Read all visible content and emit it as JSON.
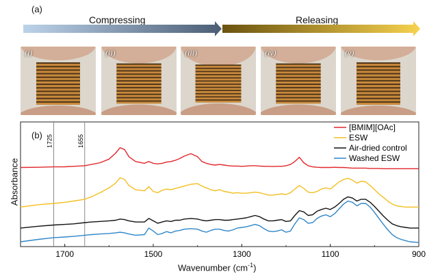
{
  "panel_a": {
    "label": "(a)",
    "compress_label": "Compressing",
    "release_label": "Releasing",
    "photos": [
      {
        "label": "(i)",
        "compression": 0.0
      },
      {
        "label": "(ii)",
        "compression": 0.15
      },
      {
        "label": "(iii)",
        "compression": 0.3
      },
      {
        "label": "(iv)",
        "compression": 0.15
      },
      {
        "label": "(v)",
        "compression": 0.0
      }
    ],
    "colors": {
      "compress_start": "#bcd3ea",
      "compress_end": "#4a5d74",
      "release_start": "#6b5310",
      "release_end": "#f6d24e"
    }
  },
  "panel_b": {
    "label": "(b)",
    "ylabel": "Absorbance",
    "xlabel": "Wavenumber (cm",
    "xlabel_sup": "-1",
    "xlabel_close": ")",
    "ref_lines": [
      "1725",
      "1655"
    ],
    "chart_data": {
      "type": "line",
      "xlabel": "Wavenumber (cm-1)",
      "ylabel": "Absorbance",
      "xlim": [
        1800,
        900
      ],
      "x_ticks": [
        "1700",
        "1500",
        "1300",
        "1100",
        "900"
      ],
      "vertical_lines": [
        1725,
        1655
      ],
      "legend_position": "top-right",
      "x": [
        1800,
        1760,
        1725,
        1700,
        1680,
        1655,
        1640,
        1620,
        1600,
        1585,
        1575,
        1565,
        1555,
        1540,
        1520,
        1510,
        1500,
        1490,
        1480,
        1470,
        1460,
        1450,
        1440,
        1430,
        1415,
        1400,
        1390,
        1380,
        1370,
        1360,
        1350,
        1340,
        1330,
        1320,
        1310,
        1300,
        1290,
        1280,
        1270,
        1260,
        1250,
        1240,
        1230,
        1220,
        1210,
        1200,
        1190,
        1180,
        1170,
        1160,
        1150,
        1140,
        1130,
        1120,
        1110,
        1100,
        1090,
        1080,
        1070,
        1060,
        1050,
        1040,
        1030,
        1020,
        1010,
        1000,
        990,
        980,
        970,
        960,
        950,
        940,
        930,
        920,
        900
      ],
      "series": [
        {
          "name": "[BMIM][OAc]",
          "color": "#e0262b",
          "values": [
            6.6,
            6.62,
            6.65,
            6.66,
            6.7,
            6.75,
            6.85,
            7.0,
            7.3,
            7.8,
            8.25,
            8.1,
            7.5,
            7.1,
            6.95,
            7.1,
            6.95,
            6.9,
            6.95,
            7.05,
            7.1,
            7.2,
            7.35,
            7.55,
            7.75,
            7.5,
            7.1,
            6.95,
            6.85,
            6.8,
            6.85,
            6.8,
            6.75,
            6.72,
            6.72,
            6.7,
            6.72,
            6.75,
            6.75,
            6.72,
            6.7,
            6.7,
            6.68,
            6.7,
            6.7,
            6.75,
            6.85,
            7.1,
            7.45,
            7.0,
            6.75,
            6.65,
            6.62,
            6.6,
            6.6,
            6.6,
            6.62,
            6.6,
            6.6,
            6.58,
            6.55,
            6.55,
            6.55,
            6.55,
            6.52,
            6.52,
            6.52,
            6.5,
            6.5,
            6.5,
            6.5,
            6.5,
            6.5,
            6.5,
            6.5
          ]
        },
        {
          "name": "ESW",
          "color": "#f2be1f",
          "values": [
            3.3,
            3.5,
            3.6,
            3.7,
            3.8,
            3.95,
            4.15,
            4.5,
            4.9,
            5.3,
            5.75,
            5.6,
            5.1,
            4.75,
            4.65,
            5.0,
            4.6,
            4.5,
            4.7,
            4.8,
            4.75,
            4.85,
            4.95,
            5.05,
            5.2,
            5.25,
            5.05,
            4.9,
            4.75,
            4.65,
            4.75,
            4.6,
            4.55,
            4.45,
            4.5,
            4.45,
            4.45,
            4.5,
            4.55,
            4.5,
            4.4,
            4.3,
            4.3,
            4.35,
            4.4,
            4.35,
            4.5,
            4.8,
            5.1,
            4.85,
            4.55,
            4.5,
            4.6,
            4.8,
            4.9,
            4.8,
            5.1,
            5.4,
            5.6,
            5.7,
            5.55,
            5.3,
            5.45,
            5.4,
            5.1,
            4.75,
            4.4,
            4.1,
            3.8,
            3.55,
            3.4,
            3.35,
            3.3,
            3.3,
            3.3
          ]
        },
        {
          "name": "Air-dried control",
          "color": "#111111",
          "values": [
            1.55,
            1.7,
            1.8,
            1.85,
            1.9,
            2.0,
            2.05,
            2.1,
            2.15,
            2.2,
            2.3,
            2.25,
            2.15,
            2.05,
            2.05,
            2.35,
            2.15,
            1.95,
            2.05,
            2.15,
            2.1,
            2.2,
            2.2,
            2.3,
            2.35,
            2.3,
            2.2,
            2.15,
            2.2,
            2.25,
            2.25,
            2.2,
            2.2,
            2.25,
            2.3,
            2.35,
            2.4,
            2.5,
            2.6,
            2.5,
            2.3,
            2.15,
            2.15,
            2.2,
            2.25,
            2.1,
            2.15,
            2.6,
            3.0,
            2.9,
            2.6,
            2.65,
            2.95,
            3.1,
            3.2,
            3.1,
            3.3,
            3.6,
            3.95,
            4.15,
            4.05,
            3.8,
            3.95,
            3.95,
            3.7,
            3.35,
            2.95,
            2.55,
            2.2,
            1.9,
            1.75,
            1.65,
            1.6,
            1.55,
            1.55
          ]
        },
        {
          "name": "Washed ESW",
          "color": "#2e86c8",
          "values": [
            0.4,
            0.6,
            0.75,
            0.8,
            0.85,
            0.95,
            1.0,
            1.05,
            1.1,
            1.15,
            1.2,
            1.15,
            1.05,
            0.95,
            1.0,
            1.55,
            1.3,
            1.0,
            1.1,
            1.25,
            1.15,
            1.3,
            1.35,
            1.45,
            1.5,
            1.45,
            1.3,
            1.2,
            1.35,
            1.45,
            1.45,
            1.35,
            1.3,
            1.4,
            1.55,
            1.6,
            1.65,
            1.75,
            1.85,
            1.75,
            1.5,
            1.3,
            1.25,
            1.3,
            1.4,
            1.2,
            1.3,
            1.9,
            2.4,
            2.25,
            1.95,
            2.0,
            2.35,
            2.55,
            2.65,
            2.5,
            2.75,
            3.15,
            3.55,
            3.8,
            3.7,
            3.4,
            3.6,
            3.6,
            3.3,
            2.85,
            2.35,
            1.85,
            1.4,
            1.0,
            0.75,
            0.6,
            0.5,
            0.4,
            0.35
          ]
        }
      ]
    }
  }
}
